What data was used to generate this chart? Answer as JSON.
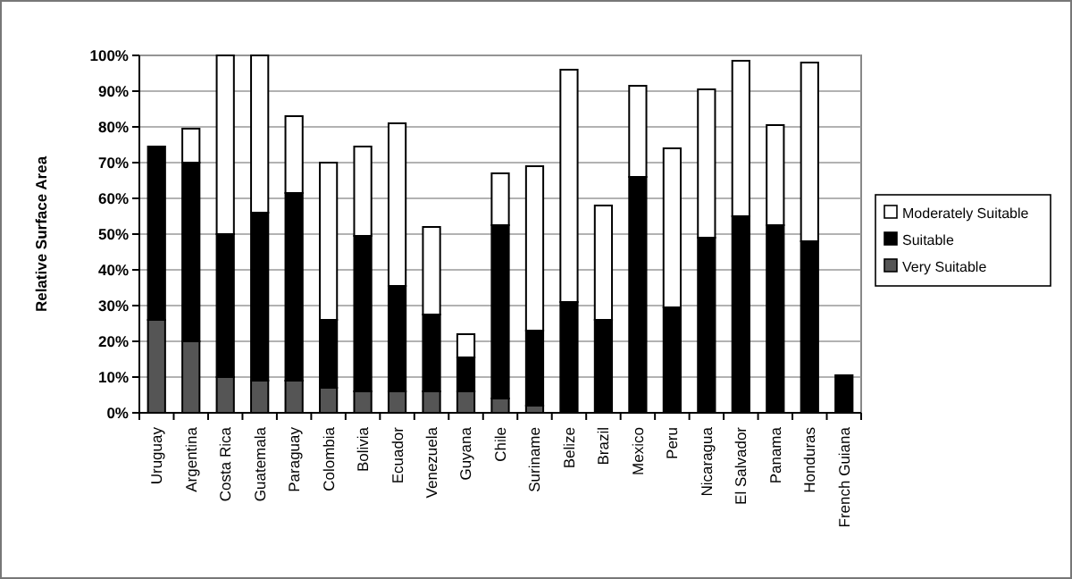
{
  "chart_data": {
    "type": "bar",
    "stacked": true,
    "ylabel": "Relative Surface Area",
    "categories": [
      "Uruguay",
      "Argentina",
      "Costa Rica",
      "Guatemala",
      "Paraguay",
      "Colombia",
      "Bolivia",
      "Ecuador",
      "Venezuela",
      "Guyana",
      "Chile",
      "Suriname",
      "Belize",
      "Brazil",
      "Mexico",
      "Peru",
      "Nicaragua",
      "El Salvador",
      "Panama",
      "Honduras",
      "French Guiana"
    ],
    "series": [
      {
        "name": "Very Suitable",
        "color": "#555555",
        "values": [
          26,
          20,
          10,
          9,
          9,
          7,
          6,
          6,
          6,
          6,
          4,
          2,
          null,
          0,
          0,
          0,
          0,
          0,
          0,
          0,
          0
        ]
      },
      {
        "name": "Suitable",
        "color": "#000000",
        "values": [
          48.5,
          50,
          40,
          47,
          52.5,
          19,
          43.5,
          29.5,
          21.5,
          9.5,
          48.5,
          21,
          31,
          26,
          66,
          29.5,
          49,
          55,
          52.5,
          48,
          10.5
        ]
      },
      {
        "name": "Moderately Suitable",
        "color": "#ffffff",
        "values": [
          0,
          9.5,
          50,
          44,
          21.5,
          44,
          25,
          45.5,
          24.5,
          6.5,
          14.5,
          46,
          65,
          32,
          25.5,
          44.5,
          41.5,
          43.5,
          28,
          50,
          0
        ]
      }
    ],
    "ylim": [
      0,
      100
    ],
    "yticks": [
      {
        "value": 0,
        "label": "0%"
      },
      {
        "value": 10,
        "label": "10%"
      },
      {
        "value": 20,
        "label": "20%"
      },
      {
        "value": 30,
        "label": "30%"
      },
      {
        "value": 40,
        "label": "40%"
      },
      {
        "value": 50,
        "label": "50%"
      },
      {
        "value": 60,
        "label": "60%"
      },
      {
        "value": 70,
        "label": "70%"
      },
      {
        "value": 80,
        "label": "80%"
      },
      {
        "value": 90,
        "label": "90%"
      },
      {
        "value": 100,
        "label": "100%"
      }
    ],
    "grid": "y",
    "legend": "right"
  }
}
